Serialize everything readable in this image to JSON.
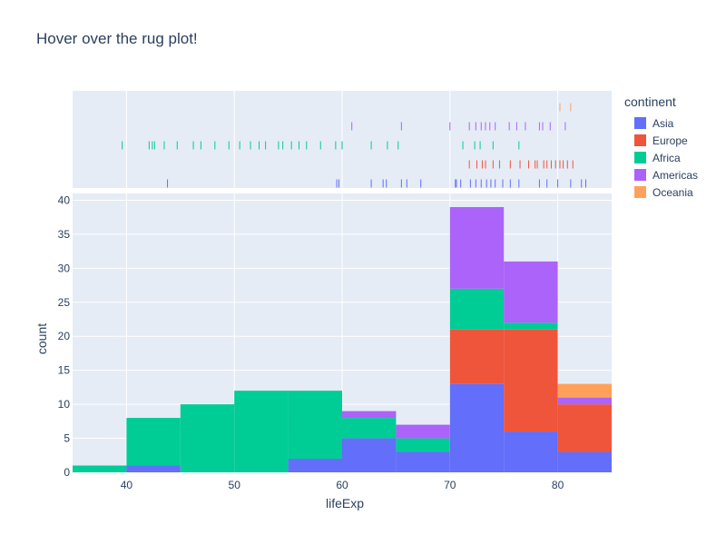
{
  "title": "Hover over the rug plot!",
  "chart_data": {
    "type": "histogram",
    "title": "Hover over the rug plot!",
    "xlabel": "lifeExp",
    "ylabel": "count",
    "xlim": [
      35,
      85
    ],
    "ylim": [
      0,
      41
    ],
    "x_ticks": [
      40,
      50,
      60,
      70,
      80
    ],
    "y_ticks": [
      0,
      5,
      10,
      15,
      20,
      25,
      30,
      35,
      40
    ],
    "bin_edges": [
      35,
      40,
      45,
      50,
      55,
      60,
      65,
      70,
      75,
      80,
      85
    ],
    "legend_title": "continent",
    "legend_position": "right",
    "barmode": "stack",
    "series": [
      {
        "name": "Asia",
        "color": "#636efa",
        "counts": [
          0,
          1,
          0,
          0,
          2,
          5,
          3,
          13,
          6,
          3
        ]
      },
      {
        "name": "Europe",
        "color": "#ef553b",
        "counts": [
          0,
          0,
          0,
          0,
          0,
          0,
          0,
          8,
          15,
          7
        ]
      },
      {
        "name": "Africa",
        "color": "#00cc96",
        "counts": [
          1,
          7,
          10,
          12,
          10,
          3,
          2,
          6,
          1,
          0
        ]
      },
      {
        "name": "Americas",
        "color": "#ab63fa",
        "counts": [
          0,
          0,
          0,
          0,
          0,
          1,
          2,
          12,
          9,
          1
        ]
      },
      {
        "name": "Oceania",
        "color": "#ffa15a",
        "counts": [
          0,
          0,
          0,
          0,
          0,
          0,
          0,
          0,
          0,
          2
        ]
      }
    ],
    "rug": {
      "Oceania": [
        80.2,
        81.2
      ],
      "Americas": [
        60.9,
        65.5,
        70.0,
        71.8,
        72.4,
        72.9,
        73.3,
        73.7,
        74.2,
        75.5,
        76.2,
        77.0,
        78.3,
        78.6,
        79.3,
        80.7
      ],
      "Africa": [
        39.6,
        42.1,
        42.4,
        42.6,
        43.5,
        44.7,
        46.2,
        46.9,
        48.2,
        49.5,
        50.5,
        51.5,
        52.3,
        52.9,
        54.1,
        54.5,
        55.3,
        56.0,
        56.7,
        58.0,
        59.4,
        60.0,
        62.7,
        64.2,
        65.2,
        71.2,
        72.3,
        72.8,
        74.0,
        76.4
      ],
      "Europe": [
        71.8,
        72.5,
        73.0,
        73.3,
        74.0,
        74.6,
        75.6,
        76.5,
        77.3,
        77.9,
        78.1,
        78.7,
        79.0,
        79.4,
        79.8,
        80.2,
        80.5,
        80.9,
        81.4
      ],
      "Asia": [
        43.8,
        59.5,
        59.7,
        62.7,
        63.8,
        64.1,
        65.5,
        66.0,
        67.3,
        70.5,
        70.6,
        71.0,
        71.9,
        72.4,
        72.9,
        73.4,
        73.8,
        74.2,
        74.9,
        75.6,
        76.4,
        78.3,
        79.0,
        80.0,
        81.2,
        82.2,
        82.6
      ]
    }
  }
}
